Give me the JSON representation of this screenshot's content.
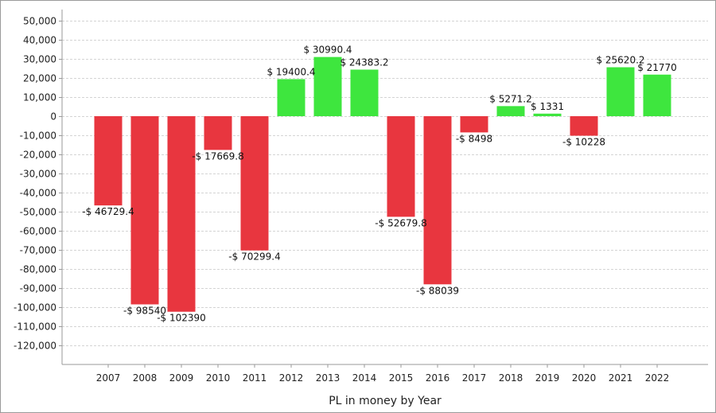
{
  "chart_data": {
    "type": "bar",
    "title": "",
    "xlabel": "PL in money by Year",
    "ylabel": "",
    "ylim": [
      -130000,
      55000
    ],
    "yticks": [
      50000,
      40000,
      30000,
      20000,
      10000,
      0,
      -10000,
      -20000,
      -30000,
      -40000,
      -50000,
      -60000,
      -70000,
      -80000,
      -90000,
      -100000,
      -110000,
      -120000
    ],
    "ytick_labels": [
      "50,000",
      "40,000",
      "30,000",
      "20,000",
      "10,000",
      "0",
      "-10,000",
      "-20,000",
      "-30,000",
      "-40,000",
      "-50,000",
      "-60,000",
      "-70,000",
      "-80,000",
      "-90,000",
      "-100,000",
      "-110,000",
      "-120,000"
    ],
    "grid": true,
    "categories": [
      "2007",
      "2008",
      "2009",
      "2010",
      "2011",
      "2012",
      "2013",
      "2014",
      "2015",
      "2016",
      "2017",
      "2018",
      "2019",
      "2020",
      "2021",
      "2022"
    ],
    "values": [
      -46729.4,
      -98540,
      -102390,
      -17669.8,
      -70299.4,
      19400.4,
      30990.4,
      24383.2,
      -52679.8,
      -88039,
      -8498,
      5271.2,
      1331,
      -10228,
      25620.2,
      21770
    ],
    "data_labels": [
      "-$ 46729.4",
      "-$ 98540",
      "-$ 102390",
      "-$ 17669.8",
      "-$ 70299.4",
      "$ 19400.4",
      "$ 30990.4",
      "$ 24383.2",
      "-$ 52679.8",
      "-$ 88039",
      "-$ 8498",
      "$ 5271.2",
      "$ 1331",
      "-$ 10228",
      "$ 25620.2",
      "$ 21770"
    ],
    "colors": {
      "positive": "#3ee63e",
      "negative": "#e8363f",
      "grid": "#d4d4d4",
      "axis": "#999999"
    }
  }
}
